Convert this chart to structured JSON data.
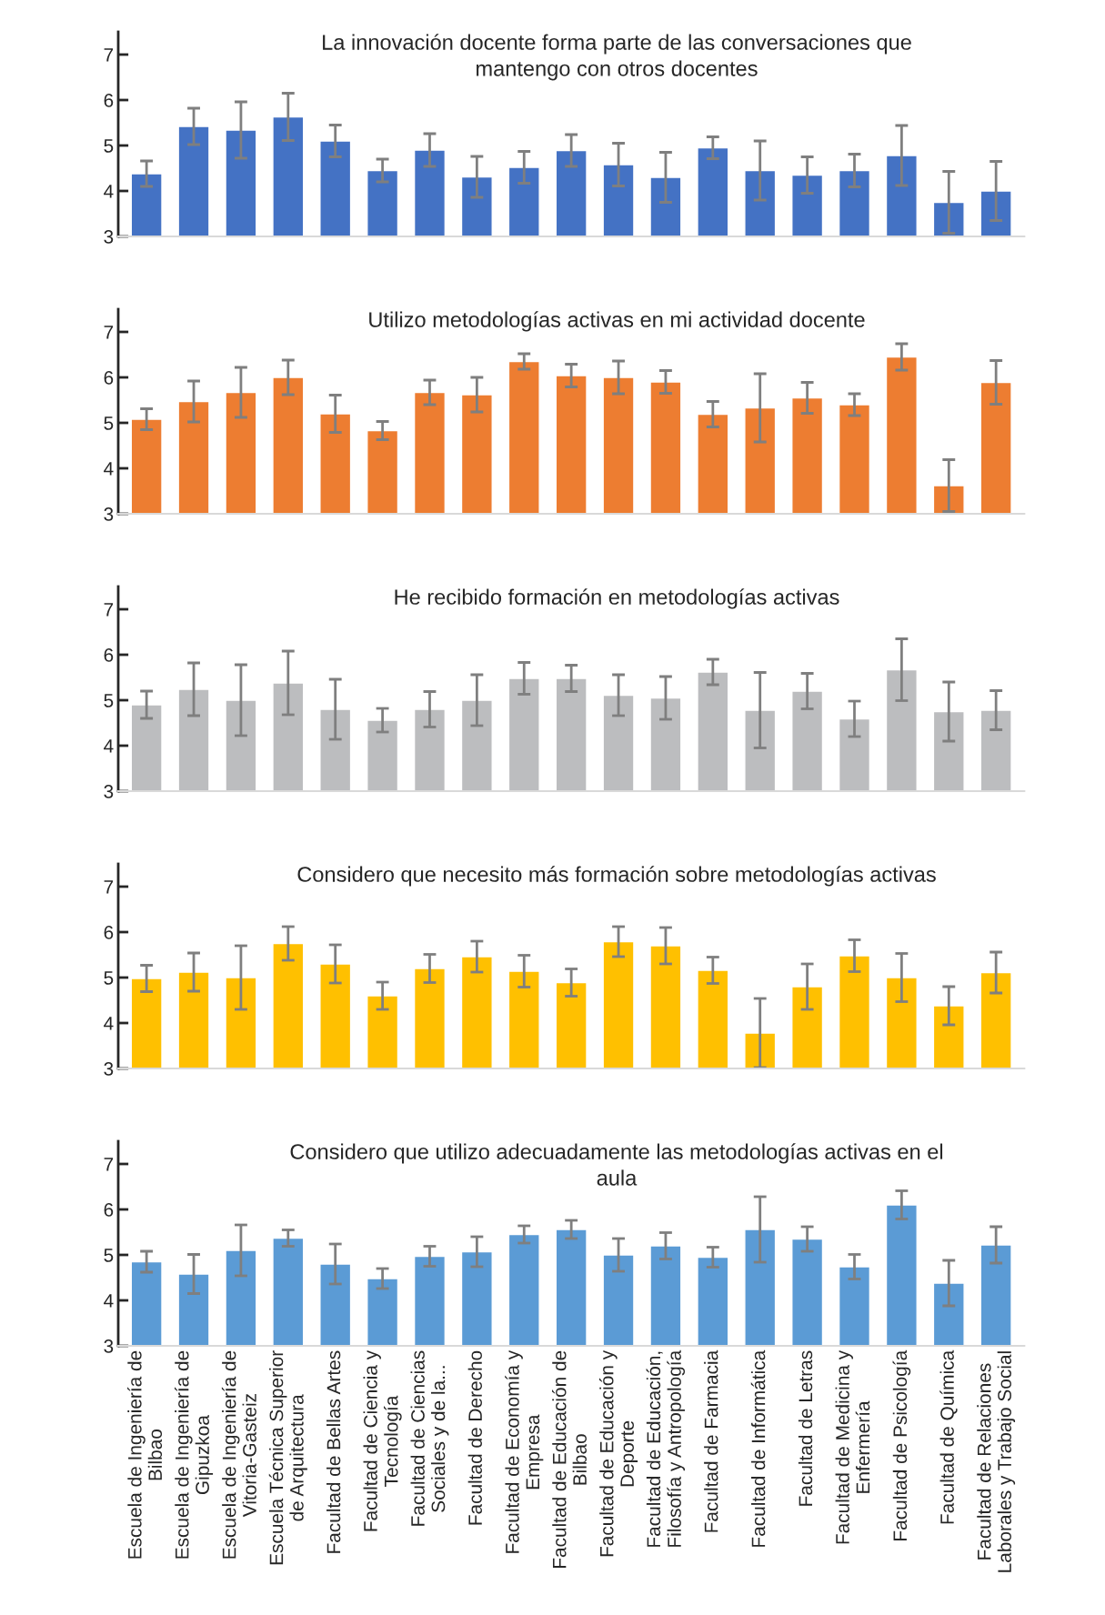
{
  "chart_data": [
    {
      "type": "bar",
      "title": "La innovación docente forma parte de las conversaciones que\nmantengo con otros docentes",
      "color": "#4472c4",
      "ylim": [
        3,
        7.5
      ],
      "yticks": [
        3,
        4,
        5,
        6,
        7
      ],
      "tick_labels": "y",
      "grid": false,
      "categories": [
        null,
        null,
        null,
        null,
        null,
        null,
        null,
        null,
        null,
        null,
        null,
        null,
        null,
        null,
        null,
        null,
        null,
        null,
        null
      ],
      "values": [
        4.38,
        5.42,
        5.34,
        5.63,
        5.1,
        4.45,
        4.9,
        4.31,
        4.52,
        4.89,
        4.58,
        4.3,
        4.95,
        4.45,
        4.35,
        4.45,
        4.78,
        3.75,
        4.0
      ],
      "errors": [
        0.28,
        0.4,
        0.62,
        0.52,
        0.35,
        0.25,
        0.36,
        0.45,
        0.35,
        0.35,
        0.47,
        0.55,
        0.24,
        0.65,
        0.4,
        0.36,
        0.66,
        0.68,
        0.65
      ]
    },
    {
      "type": "bar",
      "title": "Utilizo metodologías activas en mi actividad docente",
      "color": "#ed7d31",
      "ylim": [
        3,
        7.5
      ],
      "yticks": [
        3,
        4,
        5,
        6,
        7
      ],
      "tick_labels": "y",
      "grid": false,
      "categories": [
        null,
        null,
        null,
        null,
        null,
        null,
        null,
        null,
        null,
        null,
        null,
        null,
        null,
        null,
        null,
        null,
        null,
        null,
        null
      ],
      "values": [
        5.08,
        5.47,
        5.67,
        6.0,
        5.2,
        4.83,
        5.67,
        5.62,
        6.35,
        6.04,
        6.0,
        5.9,
        5.19,
        5.33,
        5.55,
        5.4,
        6.45,
        3.62,
        5.89
      ],
      "errors": [
        0.23,
        0.45,
        0.55,
        0.38,
        0.41,
        0.2,
        0.27,
        0.38,
        0.17,
        0.25,
        0.36,
        0.25,
        0.28,
        0.75,
        0.34,
        0.24,
        0.29,
        0.57,
        0.48
      ]
    },
    {
      "type": "bar",
      "title": "He recibido formación en metodologías activas",
      "color": "#bcbdbf",
      "ylim": [
        3,
        7.5
      ],
      "yticks": [
        3,
        4,
        5,
        6,
        7
      ],
      "tick_labels": "y",
      "grid": false,
      "categories": [
        null,
        null,
        null,
        null,
        null,
        null,
        null,
        null,
        null,
        null,
        null,
        null,
        null,
        null,
        null,
        null,
        null,
        null,
        null
      ],
      "values": [
        4.9,
        5.24,
        5.0,
        5.38,
        4.8,
        4.56,
        4.8,
        5.0,
        5.48,
        5.48,
        5.11,
        5.05,
        5.62,
        4.78,
        5.2,
        4.59,
        5.67,
        4.75,
        4.78
      ],
      "errors": [
        0.3,
        0.58,
        0.78,
        0.7,
        0.66,
        0.26,
        0.39,
        0.56,
        0.35,
        0.29,
        0.45,
        0.47,
        0.28,
        0.83,
        0.39,
        0.39,
        0.68,
        0.65,
        0.43
      ]
    },
    {
      "type": "bar",
      "title": "Considero que necesito más formación sobre metodologías activas",
      "color": "#ffc000",
      "ylim": [
        3,
        7.5
      ],
      "yticks": [
        3,
        4,
        5,
        6,
        7
      ],
      "tick_labels": "y",
      "grid": false,
      "categories": [
        null,
        null,
        null,
        null,
        null,
        null,
        null,
        null,
        null,
        null,
        null,
        null,
        null,
        null,
        null,
        null,
        null,
        null,
        null
      ],
      "values": [
        4.98,
        5.12,
        5.0,
        5.75,
        5.3,
        4.6,
        5.2,
        5.46,
        5.14,
        4.89,
        5.79,
        5.7,
        5.16,
        3.78,
        4.8,
        5.48,
        5.0,
        4.38,
        5.11
      ],
      "errors": [
        0.29,
        0.42,
        0.7,
        0.37,
        0.42,
        0.3,
        0.31,
        0.34,
        0.35,
        0.3,
        0.33,
        0.4,
        0.29,
        0.76,
        0.5,
        0.35,
        0.53,
        0.42,
        0.45
      ]
    },
    {
      "type": "bar",
      "title": "Considero que utilizo adecuadamente las metodologías activas en el\naula",
      "color": "#5b9bd5",
      "ylim": [
        3,
        7.5
      ],
      "yticks": [
        3,
        4,
        5,
        6,
        7
      ],
      "grid": false,
      "categories": [
        "Escuela de Ingeniería de\nBilbao",
        "Escuela de Ingeniería de\nGipuzkoa",
        "Escuela de Ingeniería de\nVitoria-Gasteiz",
        "Escuela Técnica Superior\nde Arquitectura",
        "Facultad de Bellas Artes",
        "Facultad de Ciencia y\nTecnología",
        "Facultad de Ciencias\nSociales y de la...",
        "Facultad de Derecho",
        "Facultad de Economía y\nEmpresa",
        "Facultad de Educación de\nBilbao",
        "Facultad de Educación y\nDeporte",
        "Facultad de Educación,\nFilosofía y Antropología",
        "Facultad de Farmacia",
        "Facultad de Informática",
        "Facultad de Letras",
        "Facultad de Medicina y\nEnfermería",
        "Facultad de Psicología",
        "Facultad de Química",
        "Facultad de Relaciones\nLaborales y Trabajo Social"
      ],
      "values": [
        4.85,
        4.58,
        5.1,
        5.37,
        4.8,
        4.48,
        4.97,
        5.07,
        5.45,
        5.56,
        5.0,
        5.2,
        4.95,
        5.56,
        5.35,
        4.74,
        6.1,
        4.38,
        5.22
      ],
      "errors": [
        0.23,
        0.43,
        0.56,
        0.18,
        0.44,
        0.22,
        0.22,
        0.33,
        0.19,
        0.2,
        0.36,
        0.29,
        0.22,
        0.72,
        0.27,
        0.27,
        0.31,
        0.5,
        0.4
      ]
    }
  ]
}
